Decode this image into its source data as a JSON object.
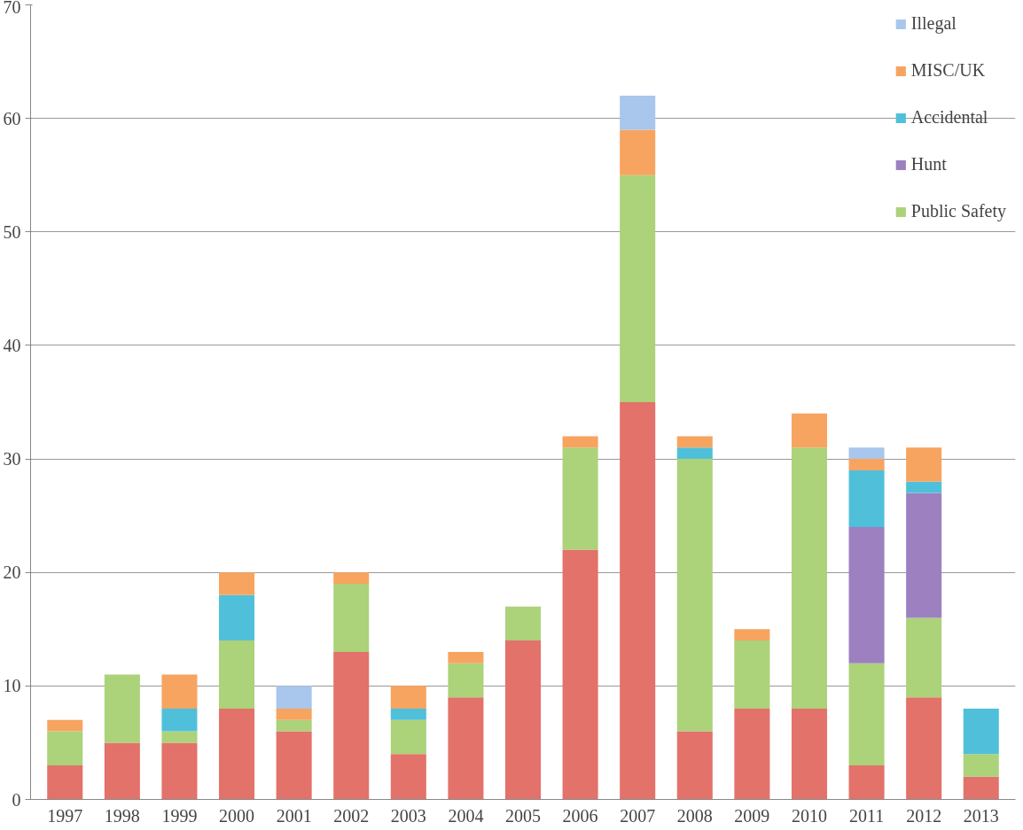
{
  "chart_data": {
    "type": "bar",
    "stacked": true,
    "categories": [
      "1997",
      "1998",
      "1999",
      "2000",
      "2001",
      "2002",
      "2003",
      "2004",
      "2005",
      "2006",
      "2007",
      "2008",
      "2009",
      "2010",
      "2011",
      "2012",
      "2013"
    ],
    "series": [
      {
        "color": "#e2726a",
        "values": [
          3,
          5,
          5,
          8,
          6,
          13,
          4,
          9,
          14,
          22,
          35,
          6,
          8,
          8,
          3,
          9,
          2
        ]
      },
      {
        "name": "Public Safety",
        "color": "#acd27a",
        "values": [
          3,
          6,
          1,
          6,
          1,
          6,
          3,
          3,
          3,
          9,
          20,
          24,
          6,
          23,
          9,
          7,
          2
        ]
      },
      {
        "name": "Hunt",
        "color": "#9c80c0",
        "values": [
          0,
          0,
          0,
          0,
          0,
          0,
          0,
          0,
          0,
          0,
          0,
          0,
          0,
          0,
          12,
          11,
          0
        ]
      },
      {
        "name": "Accidental",
        "color": "#50c0da",
        "values": [
          0,
          0,
          2,
          4,
          0,
          0,
          1,
          0,
          0,
          0,
          0,
          1,
          0,
          0,
          5,
          1,
          4
        ]
      },
      {
        "name": "MISC/UK",
        "color": "#f7a460",
        "values": [
          1,
          0,
          3,
          2,
          1,
          1,
          2,
          1,
          0,
          1,
          4,
          1,
          1,
          3,
          1,
          3,
          0
        ]
      },
      {
        "name": "Illegal",
        "color": "#a9c6ec",
        "values": [
          0,
          0,
          0,
          0,
          2,
          0,
          0,
          0,
          0,
          0,
          3,
          0,
          0,
          0,
          1,
          0,
          0
        ]
      }
    ],
    "ylim": [
      0,
      70
    ],
    "yticks": [
      0,
      10,
      20,
      30,
      40,
      50,
      60,
      70
    ],
    "grid": "y",
    "legend": "top right"
  }
}
